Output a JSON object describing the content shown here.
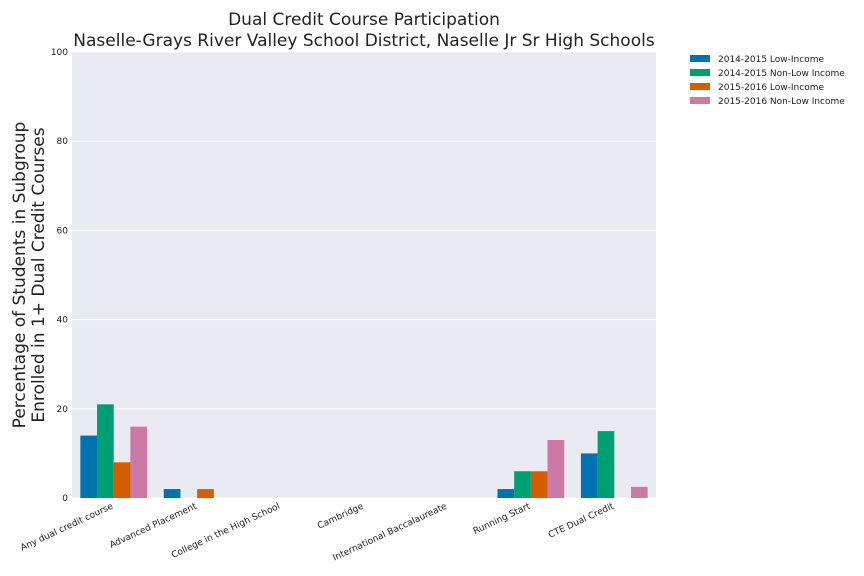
{
  "chart_data": {
    "type": "bar",
    "title": "Dual Credit Course Participation",
    "subtitle": "Naselle-Grays River Valley School District, Naselle Jr Sr High Schools",
    "xlabel": "",
    "ylabel": [
      "Percentage of Students in Subgroup",
      "Enrolled in 1+ Dual Credit Courses"
    ],
    "ylim": [
      0,
      100
    ],
    "yticks": [
      "0",
      "20",
      "40",
      "60",
      "80",
      "100"
    ],
    "grid": true,
    "legend_position": "outside-top-right",
    "categories": [
      "Any dual credit course",
      "Advanced Placement",
      "College in the High School",
      "Cambridge",
      "International Baccalaureate",
      "Running Start",
      "CTE Dual Credit"
    ],
    "series": [
      {
        "name": "2014-2015 Low-Income",
        "color": "#0072b2",
        "values": [
          14,
          2,
          0,
          0,
          0,
          2,
          10
        ]
      },
      {
        "name": "2014-2015 Non-Low Income",
        "color": "#009e73",
        "values": [
          21,
          0,
          0,
          0,
          0,
          6,
          15
        ]
      },
      {
        "name": "2015-2016 Low-Income",
        "color": "#d55e00",
        "values": [
          8,
          2,
          0,
          0,
          0,
          6,
          0
        ]
      },
      {
        "name": "2015-2016 Non-Low Income",
        "color": "#cc79a7",
        "values": [
          16,
          0,
          0,
          0,
          0,
          13,
          2.5
        ]
      }
    ]
  }
}
